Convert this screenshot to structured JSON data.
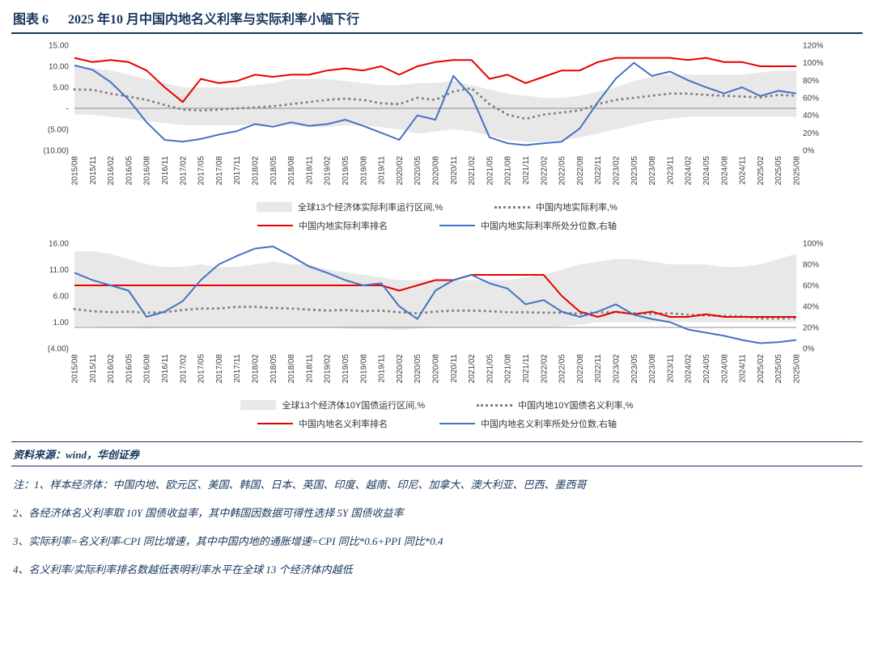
{
  "header": {
    "tag": "图表 6",
    "title": "2025 年10 月中国内地名义利率与实际利率小幅下行"
  },
  "footer": {
    "source": "资料来源：wind，华创证券",
    "notes": [
      "注：1、样本经济体：中国内地、欧元区、美国、韩国、日本、英国、印度、越南、印尼、加拿大、澳大利亚、巴西、墨西哥",
      "2、各经济体名义利率取 10Y 国债收益率，其中韩国因数据可得性选择 5Y 国债收益率",
      "3、实际利率=名义利率-CPI 同比增速，其中中国内地的通胀增速=CPI 同比*0.6+PPI 同比*0.4",
      "4、名义利率/实际利率排名数越低表明利率水平在全球 13 个经济体内越低"
    ]
  },
  "colors": {
    "accent": "#17365d",
    "red_line": "#e60000",
    "blue_line": "#4472c4",
    "dotted_gray": "#7f7f7f",
    "band_gray": "#e8e8e8"
  },
  "chart_data": [
    {
      "type": "line",
      "title": "中国内地实际利率（排名与分位数）",
      "x": [
        "2015/08",
        "2015/11",
        "2016/02",
        "2016/05",
        "2016/08",
        "2016/11",
        "2017/02",
        "2017/05",
        "2017/08",
        "2017/11",
        "2018/02",
        "2018/05",
        "2018/08",
        "2018/11",
        "2019/02",
        "2019/05",
        "2019/08",
        "2019/11",
        "2020/02",
        "2020/05",
        "2020/08",
        "2020/11",
        "2021/02",
        "2021/05",
        "2021/08",
        "2021/11",
        "2022/02",
        "2022/05",
        "2022/08",
        "2022/11",
        "2023/02",
        "2023/05",
        "2023/08",
        "2023/11",
        "2024/02",
        "2024/05",
        "2024/08",
        "2024/11",
        "2025/02",
        "2025/05",
        "2025/08"
      ],
      "left_axis": {
        "min": -10,
        "max": 15,
        "values": [
          15,
          10,
          5,
          0,
          -5,
          -10
        ],
        "labels": [
          "15.00",
          "10.00",
          "5.00",
          "-",
          "(5.00)",
          "(10.00)"
        ]
      },
      "right_axis": {
        "min": 0,
        "max": 120,
        "values": [
          120,
          100,
          80,
          60,
          40,
          20,
          0
        ],
        "labels": [
          "120%",
          "100%",
          "80%",
          "60%",
          "40%",
          "20%",
          "0%"
        ]
      },
      "series": [
        {
          "name": "全球13个经济体实际利率运行区间,%",
          "type": "band",
          "color": "#e8e8e8",
          "upper": [
            10,
            9.5,
            9,
            8,
            7,
            6,
            5,
            5,
            5,
            5,
            5.5,
            6,
            7,
            7,
            7,
            6.5,
            6,
            5.5,
            5.5,
            6,
            6,
            6.5,
            5.5,
            4.5,
            3.5,
            3,
            2.5,
            2.5,
            3,
            4,
            5,
            6.5,
            7.5,
            8,
            8,
            8,
            8,
            8,
            8.5,
            9,
            9
          ],
          "lower": [
            -1.5,
            -1.5,
            -2,
            -2.5,
            -3,
            -3.5,
            -4,
            -4,
            -4,
            -4,
            -4,
            -4,
            -4,
            -4.5,
            -4.5,
            -4,
            -4,
            -4.5,
            -5,
            -6,
            -5.5,
            -5,
            -5.5,
            -6.5,
            -7.5,
            -8,
            -8,
            -7.5,
            -7,
            -6,
            -5,
            -4,
            -3,
            -2.5,
            -2,
            -2,
            -2,
            -2,
            -2,
            -2,
            -2
          ]
        },
        {
          "name": "中国内地实际利率,%",
          "type": "dotted",
          "color": "#7f7f7f",
          "values": [
            4.5,
            4.4,
            3.5,
            2.8,
            2.0,
            0.8,
            -0.3,
            -0.5,
            -0.3,
            0.0,
            0.2,
            0.5,
            1.0,
            1.5,
            2.0,
            2.3,
            2.0,
            1.2,
            1.0,
            2.5,
            2.0,
            4.0,
            4.8,
            1.0,
            -1.5,
            -2.5,
            -1.5,
            -1.0,
            -0.5,
            1.0,
            2.0,
            2.5,
            3.0,
            3.5,
            3.5,
            3.2,
            3.0,
            2.8,
            2.6,
            3.2,
            3.0
          ]
        },
        {
          "name": "中国内地实际利率排名",
          "type": "line",
          "color": "#e60000",
          "values": [
            12,
            11,
            11.5,
            11,
            9,
            5,
            1.5,
            7,
            6,
            6.5,
            8,
            7.5,
            8,
            8,
            9,
            9.5,
            9,
            10,
            8,
            10,
            11,
            11.5,
            11.5,
            7,
            8,
            6,
            7.5,
            9,
            9,
            11,
            12,
            12,
            12,
            12,
            11.5,
            12,
            11,
            11,
            10,
            10,
            10
          ]
        },
        {
          "name": "中国内地实际利率所处分位数,右轴",
          "type": "line",
          "axis": "right",
          "color": "#4472c4",
          "values": [
            97,
            92,
            78,
            58,
            32,
            12,
            10,
            13,
            18,
            22,
            30,
            27,
            32,
            28,
            30,
            35,
            28,
            20,
            12,
            40,
            35,
            85,
            62,
            15,
            8,
            6,
            8,
            10,
            25,
            55,
            82,
            100,
            85,
            90,
            80,
            72,
            65,
            72,
            62,
            68,
            65
          ]
        }
      ]
    },
    {
      "type": "line",
      "title": "中国内地10Y国债名义利率（排名与分位数）",
      "x": [
        "2015/08",
        "2015/11",
        "2016/02",
        "2016/05",
        "2016/08",
        "2016/11",
        "2017/02",
        "2017/05",
        "2017/08",
        "2017/11",
        "2018/02",
        "2018/05",
        "2018/08",
        "2018/11",
        "2019/02",
        "2019/05",
        "2019/08",
        "2019/11",
        "2020/02",
        "2020/05",
        "2020/08",
        "2020/11",
        "2021/02",
        "2021/05",
        "2021/08",
        "2021/11",
        "2022/02",
        "2022/05",
        "2022/08",
        "2022/11",
        "2023/02",
        "2023/05",
        "2023/08",
        "2023/11",
        "2024/02",
        "2024/05",
        "2024/08",
        "2024/11",
        "2025/02",
        "2025/05",
        "2025/08"
      ],
      "left_axis": {
        "min": -4,
        "max": 16,
        "values": [
          16,
          11,
          6,
          1,
          -4
        ],
        "labels": [
          "16.00",
          "11.00",
          "6.00",
          "1.00",
          "(4.00)"
        ]
      },
      "right_axis": {
        "min": 0,
        "max": 100,
        "values": [
          100,
          80,
          60,
          40,
          20,
          0
        ],
        "labels": [
          "100%",
          "80%",
          "60%",
          "40%",
          "20%",
          "0%"
        ]
      },
      "series": [
        {
          "name": "全球13个经济体10Y国债运行区间,%",
          "type": "band",
          "color": "#e8e8e8",
          "upper": [
            14.5,
            14.5,
            14,
            13,
            12,
            11.5,
            11.5,
            12,
            11.5,
            11.5,
            12,
            12.5,
            12,
            12,
            11,
            10.5,
            10,
            9.5,
            9,
            9,
            9,
            9,
            9,
            9,
            9,
            9.5,
            10,
            11,
            12,
            12.5,
            13,
            13,
            12.5,
            12,
            12,
            12,
            11.5,
            11.5,
            12,
            13,
            14
          ],
          "lower": [
            0.2,
            0.2,
            0,
            0,
            -0.2,
            0,
            0,
            0,
            0,
            0,
            0,
            0,
            0,
            0,
            0,
            -0.2,
            -0.3,
            -0.3,
            -0.5,
            -0.2,
            0,
            0,
            0,
            0,
            0,
            0,
            0,
            0.2,
            0.5,
            1,
            1,
            1,
            1,
            1,
            1,
            1,
            1,
            1,
            1,
            1,
            1
          ]
        },
        {
          "name": "中国内地10Y国债名义利率,%",
          "type": "dotted",
          "color": "#7f7f7f",
          "values": [
            3.5,
            3.1,
            2.9,
            3.0,
            2.8,
            2.9,
            3.3,
            3.6,
            3.6,
            3.9,
            3.9,
            3.7,
            3.6,
            3.4,
            3.2,
            3.3,
            3.1,
            3.2,
            2.9,
            2.7,
            3.0,
            3.2,
            3.2,
            3.1,
            2.9,
            2.9,
            2.8,
            2.8,
            2.6,
            2.9,
            2.9,
            2.7,
            2.6,
            2.7,
            2.4,
            2.3,
            2.2,
            2.1,
            1.7,
            1.7,
            1.8
          ]
        },
        {
          "name": "中国内地名义利率排名",
          "type": "line",
          "color": "#e60000",
          "values": [
            8,
            8,
            8,
            8,
            8,
            8,
            8,
            8,
            8,
            8,
            8,
            8,
            8,
            8,
            8,
            8,
            8,
            8,
            7,
            8,
            9,
            9,
            10,
            10,
            10,
            10,
            10,
            6,
            3,
            2,
            3,
            2.5,
            3,
            2,
            2,
            2.5,
            2,
            2,
            2,
            2,
            2
          ]
        },
        {
          "name": "中国内地名义利率所处分位数,右轴",
          "type": "line",
          "axis": "right",
          "color": "#4472c4",
          "values": [
            72,
            65,
            60,
            55,
            30,
            35,
            45,
            65,
            80,
            88,
            95,
            97,
            88,
            78,
            72,
            65,
            60,
            62,
            40,
            28,
            55,
            65,
            70,
            62,
            57,
            42,
            46,
            35,
            30,
            35,
            42,
            32,
            28,
            25,
            18,
            15,
            12,
            8,
            5,
            6,
            8
          ]
        }
      ]
    }
  ]
}
